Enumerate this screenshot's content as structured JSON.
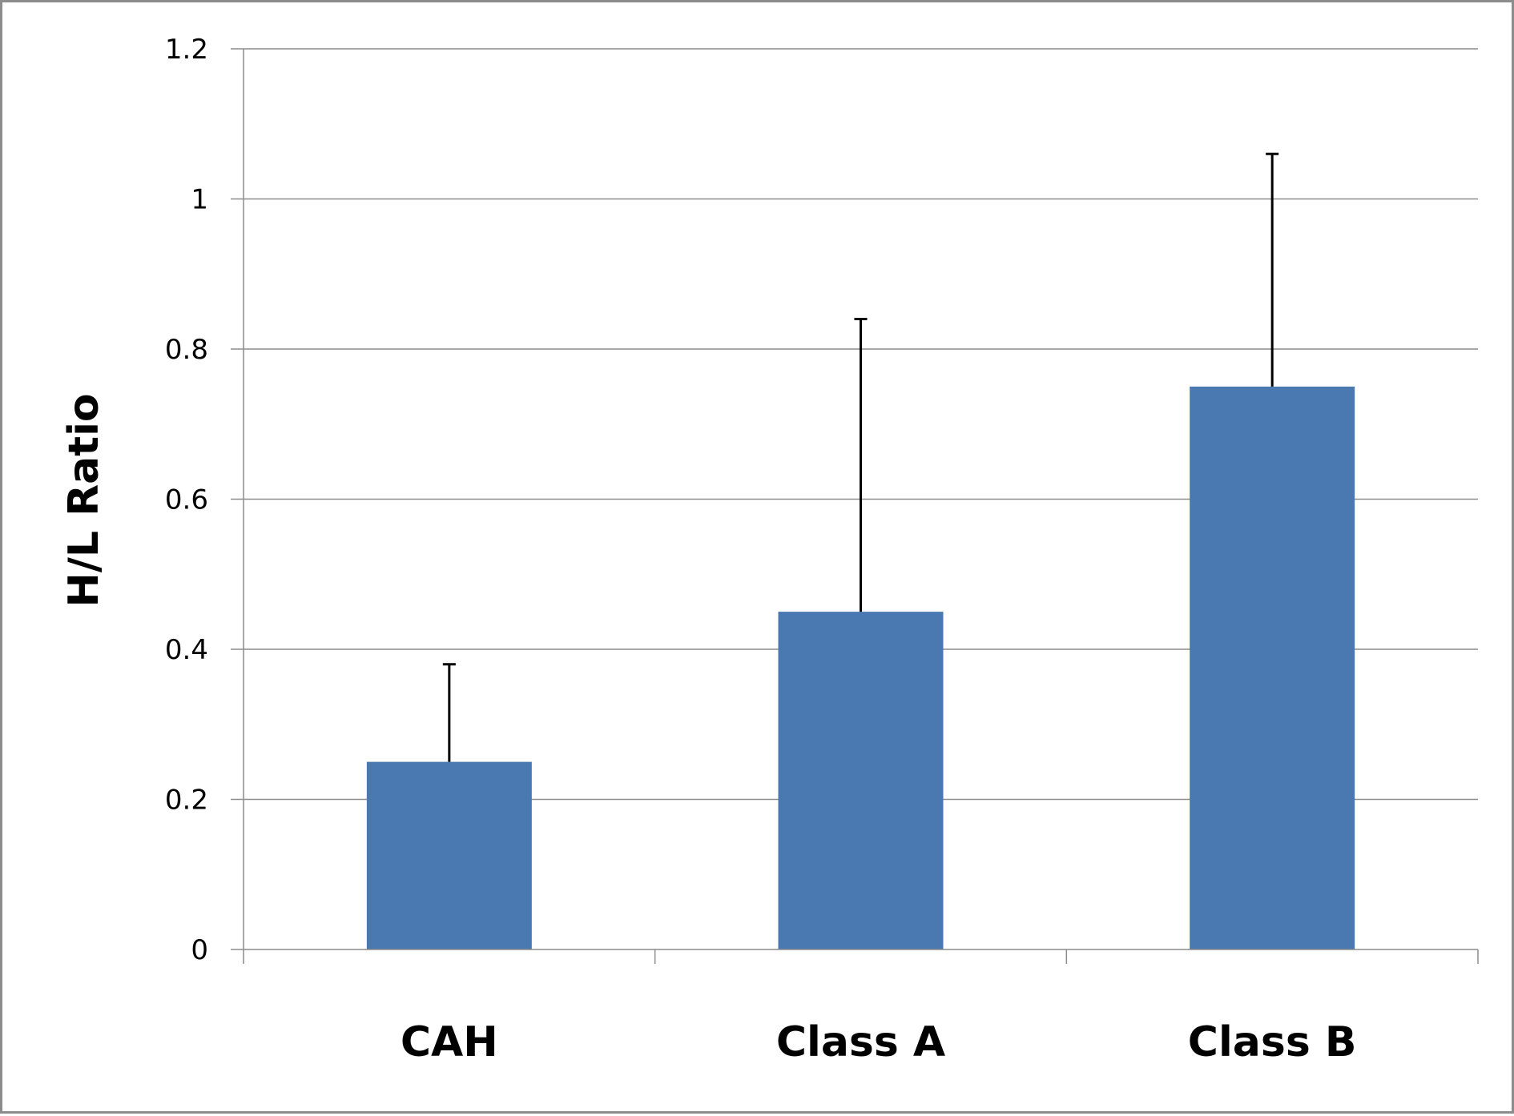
{
  "chart_data": {
    "type": "bar",
    "title": "",
    "xlabel": "",
    "ylabel": "H/L Ratio",
    "categories": [
      "CAH",
      "Class A",
      "Class B"
    ],
    "values": [
      0.25,
      0.45,
      0.75
    ],
    "error_plus": [
      0.13,
      0.39,
      0.31
    ],
    "ylim": [
      0,
      1.2
    ],
    "yticks": [
      0,
      0.2,
      0.4,
      0.6,
      0.8,
      1,
      1.2
    ],
    "ytick_labels": [
      "0",
      "0.2",
      "0.4",
      "0.6",
      "0.8",
      "1",
      "1.2"
    ],
    "grid": true,
    "legend": "none",
    "bar_color": "#4a78b0",
    "error_bar_color": "#000000",
    "gridline_color": "#8c8c8c"
  }
}
